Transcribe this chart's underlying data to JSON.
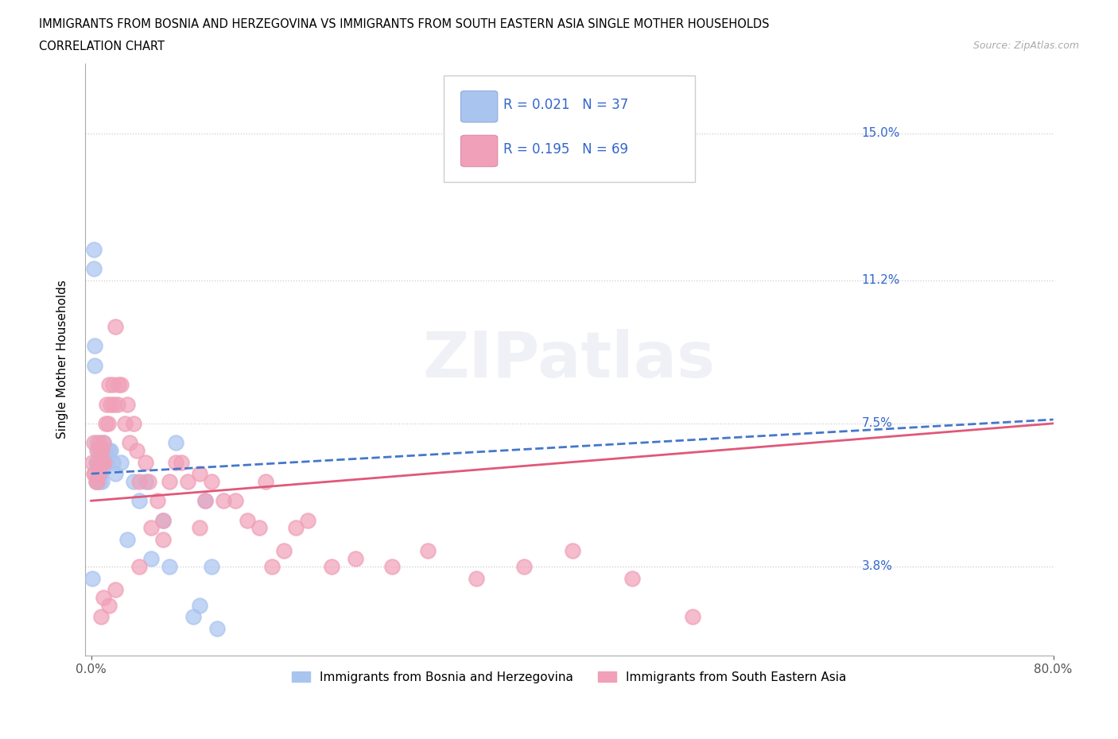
{
  "title_line1": "IMMIGRANTS FROM BOSNIA AND HERZEGOVINA VS IMMIGRANTS FROM SOUTH EASTERN ASIA SINGLE MOTHER HOUSEHOLDS",
  "title_line2": "CORRELATION CHART",
  "source_text": "Source: ZipAtlas.com",
  "ylabel": "Single Mother Households",
  "xlim": [
    -0.005,
    0.8
  ],
  "ylim": [
    0.015,
    0.168
  ],
  "yticks": [
    0.038,
    0.075,
    0.112,
    0.15
  ],
  "ytick_labels": [
    "3.8%",
    "7.5%",
    "11.2%",
    "15.0%"
  ],
  "xticks": [
    0.0,
    0.8
  ],
  "xtick_labels": [
    "0.0%",
    "80.0%"
  ],
  "watermark": "ZIPatlas",
  "series1_color": "#aac4f0",
  "series2_color": "#f0a0b8",
  "series1_line_color": "#4477cc",
  "series2_line_color": "#e05878",
  "legend_label1": "Immigrants from Bosnia and Herzegovina",
  "legend_label2": "Immigrants from South Eastern Asia",
  "trend1_x0": 0.0,
  "trend1_y0": 0.062,
  "trend1_x1": 0.8,
  "trend1_y1": 0.076,
  "trend2_x0": 0.0,
  "trend2_y0": 0.055,
  "trend2_x1": 0.8,
  "trend2_y1": 0.075,
  "series1_x": [
    0.001,
    0.002,
    0.002,
    0.003,
    0.003,
    0.004,
    0.004,
    0.005,
    0.005,
    0.006,
    0.006,
    0.007,
    0.007,
    0.008,
    0.008,
    0.009,
    0.01,
    0.012,
    0.013,
    0.015,
    0.016,
    0.018,
    0.02,
    0.025,
    0.03,
    0.035,
    0.04,
    0.045,
    0.05,
    0.06,
    0.065,
    0.07,
    0.085,
    0.09,
    0.095,
    0.1,
    0.105
  ],
  "series1_y": [
    0.035,
    0.12,
    0.115,
    0.095,
    0.09,
    0.06,
    0.065,
    0.07,
    0.065,
    0.068,
    0.065,
    0.06,
    0.068,
    0.065,
    0.062,
    0.06,
    0.07,
    0.068,
    0.065,
    0.068,
    0.068,
    0.065,
    0.062,
    0.065,
    0.045,
    0.06,
    0.055,
    0.06,
    0.04,
    0.05,
    0.038,
    0.07,
    0.025,
    0.028,
    0.055,
    0.038,
    0.022
  ],
  "series2_x": [
    0.001,
    0.002,
    0.002,
    0.003,
    0.004,
    0.005,
    0.005,
    0.006,
    0.007,
    0.007,
    0.008,
    0.009,
    0.009,
    0.01,
    0.011,
    0.012,
    0.013,
    0.014,
    0.015,
    0.016,
    0.018,
    0.019,
    0.02,
    0.022,
    0.023,
    0.025,
    0.028,
    0.03,
    0.032,
    0.035,
    0.038,
    0.04,
    0.045,
    0.048,
    0.05,
    0.055,
    0.06,
    0.065,
    0.07,
    0.075,
    0.08,
    0.09,
    0.095,
    0.1,
    0.11,
    0.12,
    0.13,
    0.14,
    0.15,
    0.16,
    0.17,
    0.18,
    0.2,
    0.22,
    0.25,
    0.28,
    0.32,
    0.36,
    0.4,
    0.45,
    0.5,
    0.145,
    0.09,
    0.06,
    0.04,
    0.02,
    0.015,
    0.01,
    0.008
  ],
  "series2_y": [
    0.065,
    0.07,
    0.062,
    0.062,
    0.06,
    0.068,
    0.06,
    0.065,
    0.07,
    0.062,
    0.068,
    0.068,
    0.065,
    0.07,
    0.065,
    0.075,
    0.08,
    0.075,
    0.085,
    0.08,
    0.085,
    0.08,
    0.1,
    0.08,
    0.085,
    0.085,
    0.075,
    0.08,
    0.07,
    0.075,
    0.068,
    0.06,
    0.065,
    0.06,
    0.048,
    0.055,
    0.05,
    0.06,
    0.065,
    0.065,
    0.06,
    0.062,
    0.055,
    0.06,
    0.055,
    0.055,
    0.05,
    0.048,
    0.038,
    0.042,
    0.048,
    0.05,
    0.038,
    0.04,
    0.038,
    0.042,
    0.035,
    0.038,
    0.042,
    0.035,
    0.025,
    0.06,
    0.048,
    0.045,
    0.038,
    0.032,
    0.028,
    0.03,
    0.025
  ]
}
